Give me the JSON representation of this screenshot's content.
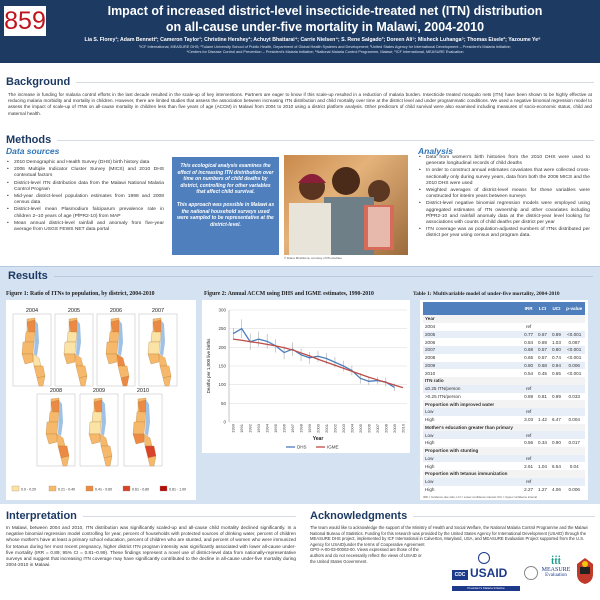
{
  "header": {
    "poster_number": "859",
    "title_line1": "Impact of increased district-level insecticide-treated net (ITN) distribution",
    "title_line2": "on all-cause under-five mortality in Malawi, 2004-2010",
    "authors": "Lia S. Florey¹; Adam Bennett²; Cameron Taylor¹; Christine Hershey³; Achuyt Bhattarai⁴; Carrie Nielsen⁴; S. Rene Salgado³; Doreen Ali⁵; Misheck Luhanga⁵; Thomas Eisele²; Yazoume Ye⁶",
    "affiliations_line1": "¹ICF International, MEASURE DHS; ²Tulane University School of Public Health, Department of Global Health Systems and Development; ³United States Agency for International Development – President's Malaria Initiative;",
    "affiliations_line2": "⁴Centers for Disease Control and Prevention – President's Malaria Initiative; ⁵National Malaria Control Programme, Malawi; ⁶ICF International, MEASURE Evaluation"
  },
  "background": {
    "heading": "Background",
    "text": "The increase in funding for malaria control efforts in the last decade resulted in the scale-up of key interventions. Partners are eager to know if this scale-up resulted in a reduction of malaria burden. Insecticide treated mosquito nets (ITN) have been shown to be highly effective at reducing malaria morbidity and mortality in children. However, there are limited studies that assess the association between increasing ITN distribution and child mortality over time at the district level and under programmatic conditions. We used a negative binomial regression model to assess the impact of scale-up of ITNs on all-cause mortality in children less than five years of age (ACCM) in Malawi from 2004 to 2010 using a district platform analysis. Other predictors of child survival were also examined including measures of socio-economic status, child and maternal health."
  },
  "methods": {
    "heading": "Methods",
    "data_sources_heading": "Data sources",
    "data_sources": [
      "2010 Demographic and Health Survey (DHS) birth history data",
      "2006 Multiple Indicator Cluster Survey (MICS) and 2010 DHS contextual factors",
      "District-level ITN distribution data from the Malawi National Malaria Control Program",
      "Mid-year district-level population estimates from 1998 and 2008 census data",
      "District-level mean Plasmodium falciparum prevalence rate in children 2–10 years of age (PfPR2-10) from MAP",
      "Mean annual district-level rainfall and anomaly from five-year average from USGS FEWS NET data portal"
    ],
    "box_text1": "This ecological analysis examines the effect of increasing ITN distribution over time on numbers of child deaths by district, controlling for other variables that affect child survival.",
    "box_text2": "This approach was possible in Malawi as the national household surveys used were sampled to be representative at the district-level.",
    "photo_credit": "© Diana Mrazikova, courtesy of Photoshare",
    "analysis_heading": "Analysis",
    "analysis": [
      "Data from women's birth histories from the 2010 DHS were used to generate longitudinal records of child deaths",
      "In order to construct annual estimates covariates that were collected cross-sectionally only during survey years, data from both the 2006 MICS and the 2010 DHS were used",
      "Weighted averages of district-level means for these variables were constructed for interim years between surveys",
      "District-level negative binomial regression models were employed using aggregated estimates of ITN ownership and other covariates including PfPR2-10 and rainfall anomaly data at the district-year level looking for associations with counts of child deaths per district per year",
      "ITN coverage was as population-adjusted numbers of ITNs distributed per district per year using census and program data."
    ]
  },
  "results": {
    "heading": "Results",
    "figure1": {
      "title": "Figure 1: Ratio of ITNs to population, by district, 2004-2010",
      "years": [
        "2004",
        "2005",
        "2006",
        "2007",
        "2008",
        "2009",
        "2010"
      ],
      "legend": [
        {
          "label": "0.0 - 0.20",
          "color": "#fbe3a6"
        },
        {
          "label": "0.21 - 0.40",
          "color": "#f6b96b"
        },
        {
          "label": "0.41 - 0.60",
          "color": "#ec8a44"
        },
        {
          "label": "0.61 - 0.80",
          "color": "#d9432a"
        },
        {
          "label": "0.81 - 1.00",
          "color": "#b30d0d"
        }
      ],
      "lake_color": "#9fc1e3"
    },
    "figure2": {
      "title": "Figure 2: Annual ACCM using DHS and IGME estimates, 1990-2010"
    },
    "table1": {
      "title": "Table 1: Multivariable model of under-five mortality, 2004-2010",
      "columns": [
        "",
        "IRR",
        "LCI",
        "UCI",
        "p-value"
      ],
      "rows": [
        {
          "type": "sec",
          "cells": [
            "Year",
            "",
            "",
            "",
            ""
          ]
        },
        {
          "cells": [
            "2004",
            "ref",
            "",
            "",
            ""
          ]
        },
        {
          "cells": [
            "2005",
            "0.77",
            "0.67",
            "0.89",
            "<0.001"
          ]
        },
        {
          "cells": [
            "2006",
            "0.84",
            "0.69",
            "1.03",
            "0.087"
          ]
        },
        {
          "cells": [
            "2007",
            "0.68",
            "0.57",
            "0.80",
            "<0.001"
          ]
        },
        {
          "cells": [
            "2008",
            "0.65",
            "0.57",
            "0.74",
            "<0.001"
          ]
        },
        {
          "cells": [
            "2009",
            "0.80",
            "0.68",
            "0.94",
            "0.006"
          ]
        },
        {
          "cells": [
            "2010",
            "0.54",
            "0.45",
            "0.65",
            "<0.001"
          ]
        },
        {
          "type": "sec",
          "cells": [
            "ITN ratio",
            "",
            "",
            "",
            ""
          ]
        },
        {
          "cells": [
            "≤0.25 ITN/person",
            "ref",
            "",
            "",
            ""
          ]
        },
        {
          "cells": [
            ">0.25 ITN/person",
            "0.89",
            "0.81",
            "0.99",
            "0.033"
          ]
        },
        {
          "type": "sec",
          "cells": [
            "Proportion with improved water",
            "",
            "",
            "",
            ""
          ]
        },
        {
          "cells": [
            "Low",
            "ref",
            "",
            "",
            ""
          ]
        },
        {
          "cells": [
            "High",
            "3.03",
            "1.42",
            "6.47",
            "0.004"
          ]
        },
        {
          "type": "sec",
          "cells": [
            "Mother's education greater than primary",
            "",
            "",
            "",
            ""
          ]
        },
        {
          "cells": [
            "Low",
            "ref",
            "",
            "",
            ""
          ]
        },
        {
          "cells": [
            "High",
            "0.56",
            "0.34",
            "0.90",
            "0.017"
          ]
        },
        {
          "type": "sec",
          "cells": [
            "Proportion with stunting",
            "",
            "",
            "",
            ""
          ]
        },
        {
          "cells": [
            "Low",
            "ref",
            "",
            "",
            ""
          ]
        },
        {
          "cells": [
            "High",
            "2.61",
            "1.04",
            "6.54",
            "0.04"
          ]
        },
        {
          "type": "sec",
          "cells": [
            "Proportion with tetanus immunization",
            "",
            "",
            "",
            ""
          ]
        },
        {
          "cells": [
            "Low",
            "ref",
            "",
            "",
            ""
          ]
        },
        {
          "cells": [
            "High",
            "2.27",
            "1.27",
            "4.06",
            "0.006"
          ]
        }
      ],
      "footnote": "IRR = Incidence rate ratio; LCI = Lower confidence interval; UCI = Upper confidence interval"
    }
  },
  "chart_data": {
    "type": "line",
    "title": "Figure 2: Annual ACCM using DHS and IGME estimates, 1990-2010",
    "xlabel": "Year",
    "ylabel": "Deaths per 1,000 live births",
    "ylim": [
      0,
      300
    ],
    "yticks": [
      0,
      50,
      100,
      150,
      200,
      250,
      300
    ],
    "grid": true,
    "legend": "bottom",
    "x": [
      "1990",
      "1991",
      "1992",
      "1993",
      "1994",
      "1995",
      "1996",
      "1997",
      "1998",
      "1999",
      "2000",
      "2001",
      "2002",
      "2003",
      "2004",
      "2005",
      "2006",
      "2007",
      "2008",
      "2009",
      "2010"
    ],
    "series": [
      {
        "name": "DHS",
        "color": "#4a7ebb",
        "values": [
          237,
          250,
          215,
          222,
          216,
          204,
          186,
          195,
          180,
          172,
          176,
          170,
          160,
          150,
          138,
          117,
          109,
          111,
          107,
          93,
          null
        ],
        "error": [
          15,
          25,
          22,
          20,
          20,
          18,
          18,
          18,
          17,
          16,
          15,
          15,
          14,
          14,
          13,
          14,
          10,
          10,
          12,
          10,
          null
        ]
      },
      {
        "name": "IGME",
        "color": "#be4b48",
        "values": [
          222,
          219,
          215,
          212,
          208,
          204,
          199,
          193,
          185,
          177,
          168,
          160,
          152,
          144,
          136,
          128,
          120,
          113,
          106,
          99,
          92
        ]
      }
    ]
  },
  "interpretation": {
    "heading": "Interpretation",
    "text": "In Malawi, between 2004 and 2010, ITN distribution was significantly scaled-up and all-cause child mortality declined significantly. In a negative binomial regression model controlling for year, percent of households with protected sources of drinking water, percent of children whose mother's have at least a primary school education, percent of children who are stunted, and percent of women who were immunized for tetanus during her most recent pregnancy, higher district ITN program intensity was significantly associated with lower all-cause under-five mortality (IRR = 0.89; 95% CI = 0.81–0.99). These findings represent a novel use of district-level data from nationally-representative surveys and suggest that increasing ITN coverage may have significantly contributed to the decline in all-cause under-five mortality during 2004-2010 in Malawi."
  },
  "acknowledgments": {
    "heading": "Acknowledgments",
    "text1": "The team would like to acknowledge the support of the Ministry of Health and Social Welfare, the National Malaria Control Programme and the Malawi National Bureau of Statistics. Funding for this research was provided by the United States Agency for International Development (USAID) through the MEASURE DHS project, implemented by ICF International in Calverton, Maryland, USA, and MEASURE Evaluation Project supported from the U.S. Agency for USAID)under the terms of Cooperative Agreement",
    "text2": "GPO-A-00-03-00003-00. Views expressed are those of the authors and do not necessarily reflect the views of USAID or the United States Government.",
    "logos": {
      "cdc": "CDC",
      "usaid": "USAID",
      "usaid_sub": "President's Malaria Initiative",
      "measure": "MEASURE",
      "measure_sub": "Evaluation"
    }
  }
}
